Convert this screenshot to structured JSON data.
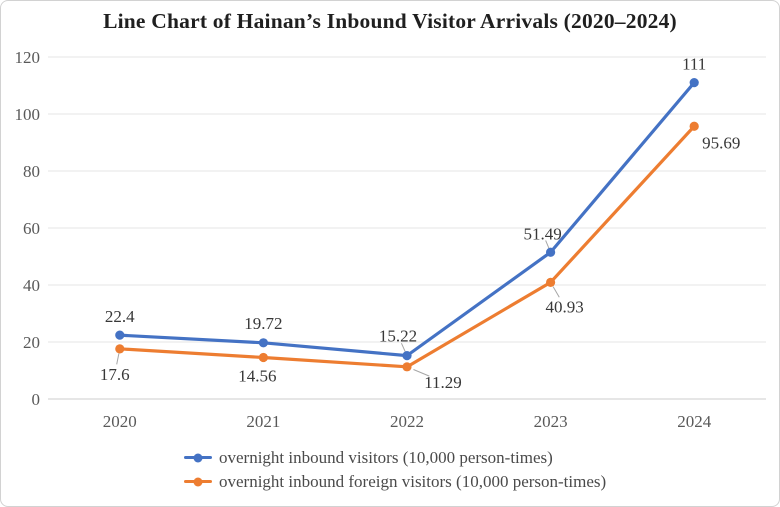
{
  "title": "Line Chart of Hainan’s Inbound Visitor Arrivals (2020–2024)",
  "chart_data": {
    "type": "line",
    "categories": [
      "2020",
      "2021",
      "2022",
      "2023",
      "2024"
    ],
    "series": [
      {
        "name": "overnight inbound visitors (10,000 person-times)",
        "color": "#4472C4",
        "values": [
          22.4,
          19.72,
          15.22,
          51.49,
          111
        ],
        "data_labels": [
          "22.4",
          "19.72",
          "15.22",
          "51.49",
          "111"
        ]
      },
      {
        "name": "overnight inbound foreign visitors (10,000 person-times)",
        "color": "#ED7D31",
        "values": [
          17.6,
          14.56,
          11.29,
          40.93,
          95.69
        ],
        "data_labels": [
          "17.6",
          "14.56",
          "11.29",
          "40.93",
          "95.69"
        ]
      }
    ],
    "ylim": [
      0,
      120
    ],
    "yticks": [
      0,
      20,
      40,
      60,
      80,
      100,
      120
    ],
    "grid": true,
    "legend_position": "bottom",
    "marker": "circle"
  },
  "style_colors": {
    "gridline": "#eaeaea",
    "axis_line": "#d8d8d8",
    "tick_label": "#595959",
    "data_label": "#383838",
    "leader_line": "#a6a6a6",
    "title": "#1f1f1f"
  }
}
